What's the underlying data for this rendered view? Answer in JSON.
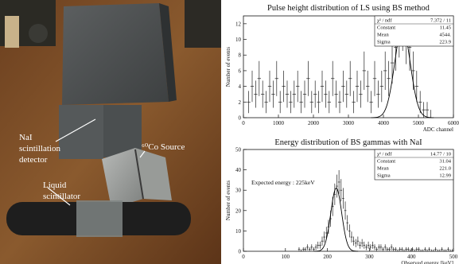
{
  "photo": {
    "labels": {
      "nai": [
        "NaI",
        "scintillation",
        "detector"
      ],
      "co_source": "⁶⁰Co Source",
      "liquid": [
        "Liquid",
        "scintillator"
      ]
    }
  },
  "chart_data": [
    {
      "type": "histogram",
      "title": "Pulse height distribution of LS using BS method",
      "xlabel": "ADC channel",
      "ylabel": "Number of events",
      "xlim": [
        0,
        6000
      ],
      "ylim": [
        0,
        13
      ],
      "xticks": [
        "0",
        "1000",
        "2000",
        "3000",
        "4000",
        "5000",
        "6000"
      ],
      "yticks": [
        "0",
        "2",
        "4",
        "6",
        "8",
        "10",
        "12"
      ],
      "stats": [
        {
          "label": "χ² / ndf",
          "value": "7.372 / 11"
        },
        {
          "label": "Constant",
          "value": "11.45"
        },
        {
          "label": "Mean",
          "value": "4544."
        },
        {
          "label": "Sigma",
          "value": "223.9"
        }
      ],
      "bin_width": 100,
      "x": [
        150,
        250,
        350,
        450,
        550,
        650,
        750,
        850,
        950,
        1050,
        1150,
        1250,
        1350,
        1450,
        1550,
        1650,
        1750,
        1850,
        1950,
        2050,
        2150,
        2250,
        2350,
        2450,
        2550,
        2650,
        2750,
        2850,
        2950,
        3050,
        3150,
        3250,
        3350,
        3450,
        3550,
        3650,
        3750,
        3850,
        3950,
        4050,
        4150,
        4250,
        4350,
        4450,
        4550,
        4650,
        4750,
        4850,
        4950,
        5050,
        5150,
        5250,
        5350
      ],
      "values": [
        2,
        4,
        3,
        5,
        3,
        2,
        4,
        3,
        5,
        2,
        4,
        3,
        2,
        3,
        4,
        2,
        3,
        5,
        2,
        3,
        2,
        4,
        3,
        2,
        5,
        3,
        2,
        4,
        3,
        5,
        2,
        4,
        3,
        6,
        4,
        2,
        5,
        3,
        4,
        6,
        5,
        7,
        9,
        11,
        12,
        10,
        9,
        6,
        4,
        2,
        1,
        1,
        0
      ],
      "fit": {
        "type": "gaussian",
        "constant": 11.45,
        "mean": 4544,
        "sigma": 223.9
      }
    },
    {
      "type": "histogram",
      "title": "Energy distribution of BS gammas with NaI",
      "xlabel": "Observed energy [keV]",
      "ylabel": "Number of events",
      "xlim": [
        0,
        500
      ],
      "ylim": [
        0,
        50
      ],
      "xticks": [
        "0",
        "100",
        "200",
        "300",
        "400",
        "500"
      ],
      "yticks": [
        "0",
        "10",
        "20",
        "30",
        "40",
        "50"
      ],
      "stats": [
        {
          "label": "χ² / ndf",
          "value": "14.77 / 10"
        },
        {
          "label": "Constant",
          "value": "31.04"
        },
        {
          "label": "Mean",
          "value": "221.0"
        },
        {
          "label": "Sigma",
          "value": "12.99"
        }
      ],
      "annotation": "Expected energy : 225keV",
      "bin_width": 5,
      "x": [
        132.5,
        137.5,
        142.5,
        147.5,
        152.5,
        157.5,
        162.5,
        167.5,
        172.5,
        177.5,
        182.5,
        187.5,
        192.5,
        197.5,
        202.5,
        207.5,
        212.5,
        217.5,
        222.5,
        227.5,
        232.5,
        237.5,
        242.5,
        247.5,
        252.5,
        257.5,
        262.5,
        267.5,
        272.5,
        277.5,
        282.5,
        287.5,
        292.5,
        297.5,
        302.5,
        307.5,
        312.5,
        317.5,
        322.5,
        327.5,
        332.5,
        337.5,
        342.5,
        347.5,
        352.5,
        357.5,
        362.5,
        367.5,
        372.5,
        377.5,
        382.5,
        387.5,
        392.5,
        397.5,
        402.5,
        407.5,
        412.5,
        417.5,
        422.5,
        427.5,
        432.5,
        437.5,
        442.5,
        447.5,
        452.5,
        457.5,
        462.5,
        467.5,
        472.5,
        477.5,
        482.5,
        487.5,
        492.5,
        497.5
      ],
      "values": [
        1,
        0,
        1,
        1,
        2,
        1,
        2,
        1,
        2,
        3,
        3,
        5,
        7,
        9,
        12,
        16,
        22,
        28,
        32,
        34,
        30,
        26,
        20,
        14,
        10,
        7,
        5,
        4,
        5,
        3,
        4,
        3,
        2,
        3,
        2,
        3,
        2,
        1,
        2,
        2,
        1,
        2,
        1,
        1,
        2,
        1,
        1,
        0,
        1,
        1,
        0,
        1,
        1,
        0,
        1,
        0,
        1,
        1,
        0,
        0,
        1,
        0,
        1,
        0,
        0,
        1,
        0,
        0,
        1,
        0,
        0,
        1,
        0,
        0
      ],
      "fit": {
        "type": "gaussian",
        "constant": 31.04,
        "mean": 221.0,
        "sigma": 12.99
      }
    }
  ]
}
